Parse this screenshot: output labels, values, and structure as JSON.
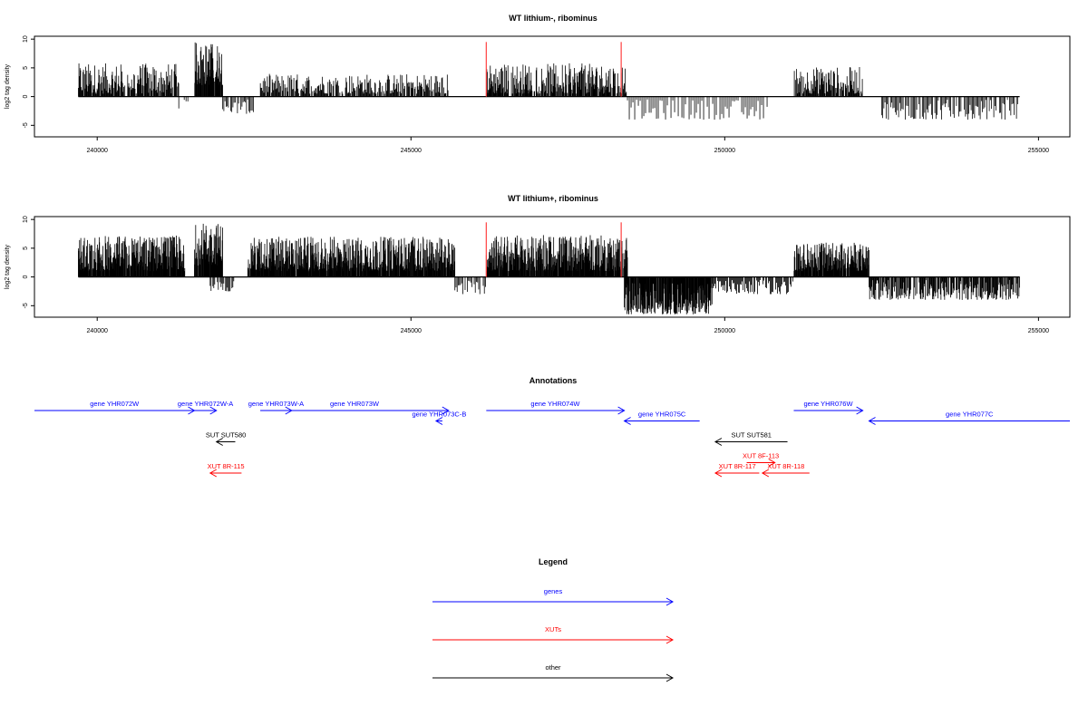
{
  "chart_data": [
    {
      "type": "bar",
      "title": "WT lithium-, ribominus",
      "ylabel": "log2 tag density",
      "xlim": [
        239000,
        255500
      ],
      "ylim": [
        -7,
        10.5
      ],
      "yticks": [
        10,
        5,
        0,
        -5
      ],
      "yticklabels": [
        "10",
        "5",
        "0",
        "-5"
      ],
      "xticks": [
        240000,
        245000,
        250000,
        255000
      ],
      "xticklabels": [
        "240000",
        "245000",
        "250000",
        "255000"
      ],
      "baseline": [
        239700,
        254700
      ],
      "highlight_lines": [
        246200,
        248350
      ],
      "highlight_height": 9.5,
      "segments": [
        {
          "start": 239700,
          "end": 241300,
          "min": 0.5,
          "max": 5.8,
          "density": 1.6
        },
        {
          "start": 241550,
          "end": 242000,
          "min": 2,
          "max": 9.5,
          "density": 3
        },
        {
          "start": 241300,
          "end": 241500,
          "min": -2.5,
          "max": -0.5,
          "density": 0.5
        },
        {
          "start": 242000,
          "end": 242500,
          "min": -3,
          "max": -0.5,
          "density": 0.8
        },
        {
          "start": 242600,
          "end": 245600,
          "min": 0.5,
          "max": 4,
          "density": 1.3
        },
        {
          "start": 246200,
          "end": 248450,
          "min": 0.5,
          "max": 5.8,
          "density": 1.8
        },
        {
          "start": 248450,
          "end": 250700,
          "min": -4,
          "max": -0.5,
          "density": 0.5
        },
        {
          "start": 251100,
          "end": 252200,
          "min": 0.5,
          "max": 5.2,
          "density": 1.6
        },
        {
          "start": 252500,
          "end": 254700,
          "min": -4,
          "max": -0.5,
          "density": 0.8
        }
      ]
    },
    {
      "type": "bar",
      "title": "WT lithium+, ribominus",
      "ylabel": "log2 tag density",
      "xlim": [
        239000,
        255500
      ],
      "ylim": [
        -7,
        10.5
      ],
      "yticks": [
        10,
        5,
        0,
        -5
      ],
      "yticklabels": [
        "10",
        "5",
        "0",
        "-5"
      ],
      "xticks": [
        240000,
        245000,
        250000,
        255000
      ],
      "xticklabels": [
        "240000",
        "245000",
        "250000",
        "255000"
      ],
      "baseline": [
        239700,
        254700
      ],
      "highlight_lines": [
        246200,
        248350
      ],
      "highlight_height": 9.5,
      "segments": [
        {
          "start": 239700,
          "end": 241400,
          "min": 1,
          "max": 7.2,
          "density": 3
        },
        {
          "start": 241550,
          "end": 242000,
          "min": 2,
          "max": 9.5,
          "density": 3
        },
        {
          "start": 241800,
          "end": 242200,
          "min": -2.5,
          "max": -0.5,
          "density": 1
        },
        {
          "start": 242400,
          "end": 245700,
          "min": 1,
          "max": 7,
          "density": 3
        },
        {
          "start": 245700,
          "end": 246200,
          "min": -3,
          "max": -0.5,
          "density": 0.8
        },
        {
          "start": 246200,
          "end": 248450,
          "min": 1,
          "max": 7.3,
          "density": 3
        },
        {
          "start": 248400,
          "end": 249800,
          "min": -6.5,
          "max": -1,
          "density": 3
        },
        {
          "start": 249800,
          "end": 251100,
          "min": -3,
          "max": -0.5,
          "density": 1
        },
        {
          "start": 251100,
          "end": 252300,
          "min": 1,
          "max": 6,
          "density": 3
        },
        {
          "start": 252300,
          "end": 254700,
          "min": -4,
          "max": -0.5,
          "density": 1.5
        }
      ]
    }
  ],
  "annotations": {
    "title": "Annotations",
    "items": [
      {
        "label": "gene YHR072W",
        "x_start": 239000,
        "x_end": 241550,
        "dir": "right",
        "row": 0,
        "color": "#0000ff"
      },
      {
        "label": "gene YHR072W-A",
        "x_start": 241550,
        "x_end": 241900,
        "dir": "right",
        "row": 0,
        "color": "#0000ff"
      },
      {
        "label": "gene YHR073W-A",
        "x_start": 242600,
        "x_end": 243100,
        "dir": "right",
        "row": 0,
        "color": "#0000ff"
      },
      {
        "label": "gene YHR073W",
        "x_start": 242600,
        "x_end": 245600,
        "dir": "right",
        "row": 0,
        "color": "#0000ff"
      },
      {
        "label": "gene YHR073C-B",
        "x_start": 245400,
        "x_end": 245500,
        "dir": "left",
        "row": 1,
        "color": "#0000ff"
      },
      {
        "label": "gene YHR074W",
        "x_start": 246200,
        "x_end": 248400,
        "dir": "right",
        "row": 0,
        "color": "#0000ff"
      },
      {
        "label": "gene YHR075C",
        "x_start": 248400,
        "x_end": 249600,
        "dir": "left",
        "row": 1,
        "color": "#0000ff"
      },
      {
        "label": "gene YHR076W",
        "x_start": 251100,
        "x_end": 252200,
        "dir": "right",
        "row": 0,
        "color": "#0000ff"
      },
      {
        "label": "gene YHR077C",
        "x_start": 252300,
        "x_end": 255500,
        "dir": "left",
        "row": 1,
        "color": "#0000ff"
      },
      {
        "label": "SUT SUT580",
        "x_start": 241900,
        "x_end": 242200,
        "dir": "left",
        "row": 3,
        "color": "#000000"
      },
      {
        "label": "SUT SUT581",
        "x_start": 249850,
        "x_end": 251000,
        "dir": "left",
        "row": 3,
        "color": "#000000"
      },
      {
        "label": "XUT 8R-115",
        "x_start": 241800,
        "x_end": 242300,
        "dir": "left",
        "row": 6,
        "color": "#ff0000"
      },
      {
        "label": "XUT 8F-113",
        "x_start": 250350,
        "x_end": 250800,
        "dir": "right",
        "row": 5,
        "color": "#ff0000"
      },
      {
        "label": "XUT 8R-117",
        "x_start": 249850,
        "x_end": 250550,
        "dir": "left",
        "row": 6,
        "color": "#ff0000"
      },
      {
        "label": "XUT 8R-118",
        "x_start": 250600,
        "x_end": 251350,
        "dir": "left",
        "row": 6,
        "color": "#ff0000"
      }
    ]
  },
  "legend": {
    "title": "Legend",
    "items": [
      {
        "label": "genes",
        "color": "#0000ff"
      },
      {
        "label": "XUTs",
        "color": "#ff0000"
      },
      {
        "label": "other",
        "color": "#000000"
      }
    ]
  }
}
